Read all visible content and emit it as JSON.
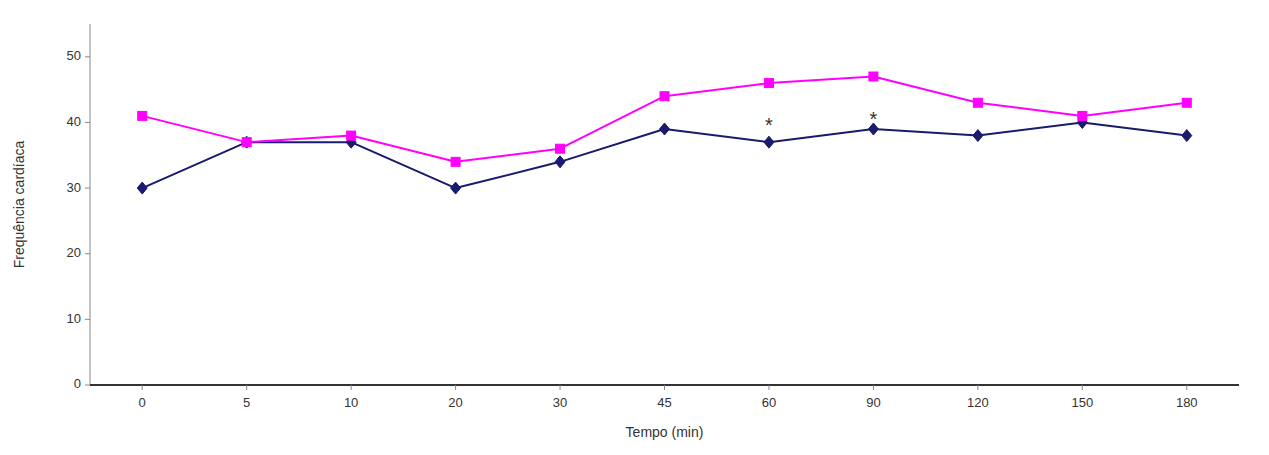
{
  "chart_data": {
    "type": "line",
    "xlabel": "Tempo (min)",
    "ylabel": "Frequência cardíaca",
    "categories": [
      "0",
      "5",
      "10",
      "20",
      "30",
      "45",
      "60",
      "90",
      "120",
      "150",
      "180"
    ],
    "series": [
      {
        "color": "#1a1a6e",
        "marker": "diamond",
        "values": [
          30,
          37,
          37,
          30,
          34,
          39,
          37,
          39,
          38,
          40,
          38
        ]
      },
      {
        "color": "#ff00ff",
        "marker": "square",
        "values": [
          41,
          37,
          38,
          34,
          36,
          44,
          46,
          47,
          43,
          41,
          43
        ]
      }
    ],
    "annotations": [
      {
        "text": "*",
        "category": "60",
        "y": 40
      },
      {
        "text": "*",
        "category": "90",
        "y": 41
      }
    ],
    "ylim": [
      0,
      55
    ],
    "yticks": [
      0,
      10,
      20,
      30,
      40,
      50
    ],
    "grid": false
  }
}
